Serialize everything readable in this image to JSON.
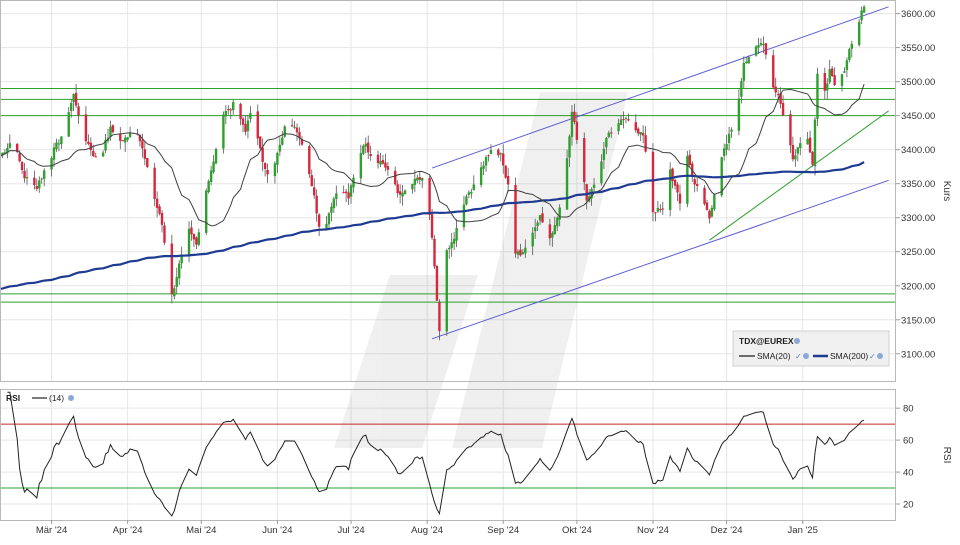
{
  "chart_data": [
    {
      "type": "candlestick",
      "symbol_label": "TDX@EUREX",
      "ylabel": "Kurs",
      "ylim": [
        3060,
        3620
      ],
      "yticks": [
        3100,
        3150,
        3200,
        3250,
        3300,
        3350,
        3400,
        3450,
        3500,
        3550,
        3600
      ],
      "ytick_labels": [
        "3100.00",
        "3150.00",
        "3200.00",
        "3250.00",
        "3300.00",
        "3350.00",
        "3400.00",
        "3450.00",
        "3500.00",
        "3550.00",
        "3600.00"
      ],
      "month_labels": [
        "Mär '24",
        "Apr '24",
        "Mai '24",
        "Jun '24",
        "Jul '24",
        "Aug '24",
        "Sep '24",
        "Okt '24",
        "Nov '24",
        "Dez '24",
        "Jan '25"
      ],
      "month_start_day": [
        21,
        52,
        82,
        113,
        143,
        174,
        205,
        235,
        266,
        296,
        327
      ],
      "x_range_days": [
        0,
        365
      ],
      "anchors": [
        [
          0,
          3390
        ],
        [
          5,
          3415
        ],
        [
          10,
          3360
        ],
        [
          15,
          3345
        ],
        [
          20,
          3385
        ],
        [
          25,
          3420
        ],
        [
          30,
          3480
        ],
        [
          35,
          3415
        ],
        [
          40,
          3380
        ],
        [
          45,
          3430
        ],
        [
          50,
          3410
        ],
        [
          55,
          3440
        ],
        [
          58,
          3400
        ],
        [
          62,
          3340
        ],
        [
          66,
          3290
        ],
        [
          70,
          3185
        ],
        [
          73,
          3230
        ],
        [
          77,
          3280
        ],
        [
          80,
          3260
        ],
        [
          83,
          3330
        ],
        [
          87,
          3380
        ],
        [
          90,
          3450
        ],
        [
          95,
          3465
        ],
        [
          100,
          3430
        ],
        [
          103,
          3460
        ],
        [
          107,
          3380
        ],
        [
          110,
          3350
        ],
        [
          113,
          3400
        ],
        [
          117,
          3445
        ],
        [
          121,
          3430
        ],
        [
          125,
          3385
        ],
        [
          128,
          3330
        ],
        [
          131,
          3270
        ],
        [
          135,
          3320
        ],
        [
          138,
          3345
        ],
        [
          142,
          3330
        ],
        [
          145,
          3370
        ],
        [
          148,
          3410
        ],
        [
          152,
          3390
        ],
        [
          156,
          3380
        ],
        [
          160,
          3360
        ],
        [
          163,
          3330
        ],
        [
          166,
          3345
        ],
        [
          170,
          3355
        ],
        [
          173,
          3360
        ],
        [
          176,
          3270
        ],
        [
          179,
          3130
        ],
        [
          181,
          3240
        ],
        [
          185,
          3270
        ],
        [
          189,
          3320
        ],
        [
          193,
          3350
        ],
        [
          197,
          3380
        ],
        [
          201,
          3410
        ],
        [
          204,
          3390
        ],
        [
          207,
          3350
        ],
        [
          210,
          3250
        ],
        [
          213,
          3245
        ],
        [
          216,
          3275
        ],
        [
          220,
          3300
        ],
        [
          224,
          3270
        ],
        [
          227,
          3300
        ],
        [
          230,
          3350
        ],
        [
          233,
          3455
        ],
        [
          236,
          3400
        ],
        [
          239,
          3330
        ],
        [
          243,
          3350
        ],
        [
          247,
          3420
        ],
        [
          251,
          3430
        ],
        [
          254,
          3445
        ],
        [
          258,
          3435
        ],
        [
          262,
          3420
        ],
        [
          266,
          3310
        ],
        [
          270,
          3310
        ],
        [
          273,
          3370
        ],
        [
          277,
          3320
        ],
        [
          280,
          3390
        ],
        [
          283,
          3350
        ],
        [
          286,
          3330
        ],
        [
          289,
          3300
        ],
        [
          293,
          3375
        ],
        [
          297,
          3420
        ],
        [
          300,
          3450
        ],
        [
          303,
          3530
        ],
        [
          307,
          3545
        ],
        [
          311,
          3560
        ],
        [
          314,
          3500
        ],
        [
          317,
          3480
        ],
        [
          320,
          3440
        ],
        [
          323,
          3390
        ],
        [
          326,
          3410
        ],
        [
          329,
          3420
        ],
        [
          331,
          3380
        ],
        [
          333,
          3510
        ],
        [
          336,
          3490
        ],
        [
          338,
          3515
        ],
        [
          341,
          3480
        ],
        [
          344,
          3520
        ],
        [
          347,
          3560
        ],
        [
          350,
          3590
        ],
        [
          352,
          3610
        ]
      ],
      "series": [
        {
          "name": "SMA(20)",
          "color": "#404040"
        },
        {
          "name": "SMA(200)",
          "color": "#1f3a93"
        }
      ],
      "support_resistance_levels": [
        3490,
        3474,
        3450,
        3188,
        3176
      ],
      "trend_channel_upper": {
        "from": [
          176,
          3373
        ],
        "to": [
          362,
          3610
        ]
      },
      "trend_channel_lower": {
        "from": [
          176,
          3122
        ],
        "to": [
          362,
          3355
        ]
      },
      "uptrend_line": {
        "from": [
          289,
          3267
        ],
        "to": [
          362,
          3457
        ]
      },
      "colors": {
        "up": "#2ea02e",
        "down": "#d7263d",
        "level": "#2ea02e",
        "channel": "#5b5bd6",
        "grid": "#e6e6e6"
      }
    },
    {
      "type": "line",
      "indicator_label": "RSI",
      "period_label": "(14)",
      "ylabel": "RSI",
      "ylim": [
        10,
        92
      ],
      "yticks": [
        20,
        40,
        60,
        80
      ],
      "ytick_labels": [
        "20",
        "40",
        "60",
        "80"
      ],
      "overbought": 70,
      "oversold": 30,
      "colors": {
        "line": "#222222",
        "overbought": "#c62828",
        "oversold": "#2ea02e"
      }
    }
  ]
}
